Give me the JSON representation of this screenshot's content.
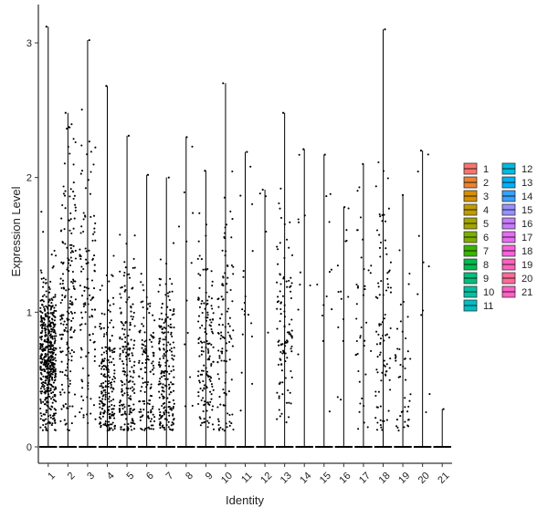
{
  "chart_data": {
    "type": "scatter",
    "subtype": "violin-jitter",
    "title": "",
    "xlabel": "Identity",
    "ylabel": "Expression Level",
    "ylim": [
      -0.15,
      3.3
    ],
    "yticks": [
      0,
      1,
      2,
      3
    ],
    "grid": false,
    "legend_position": "right",
    "categories": [
      "1",
      "2",
      "3",
      "4",
      "5",
      "6",
      "7",
      "8",
      "9",
      "10",
      "11",
      "12",
      "13",
      "14",
      "15",
      "16",
      "17",
      "18",
      "19",
      "20",
      "21"
    ],
    "colors": [
      "#F8766D",
      "#EA8331",
      "#D89000",
      "#C09B00",
      "#A3A500",
      "#7CAE00",
      "#39B600",
      "#00BB4E",
      "#00BF7D",
      "#00C1A3",
      "#00BFC4",
      "#00BAE0",
      "#00B0F6",
      "#35A2FF",
      "#9590FF",
      "#C77CFF",
      "#E76BF3",
      "#FA62DB",
      "#FF62BC",
      "#FF6A98",
      "#FF61C7"
    ],
    "series": [
      {
        "name": "1",
        "max": 3.12,
        "nonzero_count": 520,
        "mean": 0.68,
        "sd": 0.28
      },
      {
        "name": "2",
        "max": 2.48,
        "nonzero_count": 190,
        "mean": 1.05,
        "sd": 0.55
      },
      {
        "name": "3",
        "max": 3.02,
        "nonzero_count": 120,
        "mean": 1.05,
        "sd": 0.6
      },
      {
        "name": "4",
        "max": 2.68,
        "nonzero_count": 210,
        "mean": 0.45,
        "sd": 0.35
      },
      {
        "name": "5",
        "max": 2.31,
        "nonzero_count": 190,
        "mean": 0.55,
        "sd": 0.45
      },
      {
        "name": "6",
        "max": 2.02,
        "nonzero_count": 130,
        "mean": 0.5,
        "sd": 0.35
      },
      {
        "name": "7",
        "max": 2.0,
        "nonzero_count": 210,
        "mean": 0.55,
        "sd": 0.35
      },
      {
        "name": "8",
        "max": 2.3,
        "nonzero_count": 12,
        "mean": 1.0,
        "sd": 0.7
      },
      {
        "name": "9",
        "max": 2.05,
        "nonzero_count": 150,
        "mean": 0.65,
        "sd": 0.4
      },
      {
        "name": "10",
        "max": 2.7,
        "nonzero_count": 110,
        "mean": 0.8,
        "sd": 0.55
      },
      {
        "name": "11",
        "max": 2.19,
        "nonzero_count": 18,
        "mean": 1.1,
        "sd": 0.55
      },
      {
        "name": "12",
        "max": 1.91,
        "nonzero_count": 4,
        "mean": 1.4,
        "sd": 0.5
      },
      {
        "name": "13",
        "max": 2.48,
        "nonzero_count": 110,
        "mean": 0.8,
        "sd": 0.4
      },
      {
        "name": "14",
        "max": 2.21,
        "nonzero_count": 9,
        "mean": 1.4,
        "sd": 0.6
      },
      {
        "name": "15",
        "max": 2.17,
        "nonzero_count": 12,
        "mean": 1.1,
        "sd": 0.6
      },
      {
        "name": "16",
        "max": 1.78,
        "nonzero_count": 14,
        "mean": 1.2,
        "sd": 0.4
      },
      {
        "name": "17",
        "max": 2.1,
        "nonzero_count": 40,
        "mean": 0.9,
        "sd": 0.5
      },
      {
        "name": "18",
        "max": 3.1,
        "nonzero_count": 90,
        "mean": 0.9,
        "sd": 0.55
      },
      {
        "name": "19",
        "max": 1.87,
        "nonzero_count": 45,
        "mean": 0.5,
        "sd": 0.4
      },
      {
        "name": "20",
        "max": 2.2,
        "nonzero_count": 10,
        "mean": 1.2,
        "sd": 0.7
      },
      {
        "name": "21",
        "max": 0.28,
        "nonzero_count": 0,
        "mean": 0.0,
        "sd": 0.0
      }
    ]
  }
}
